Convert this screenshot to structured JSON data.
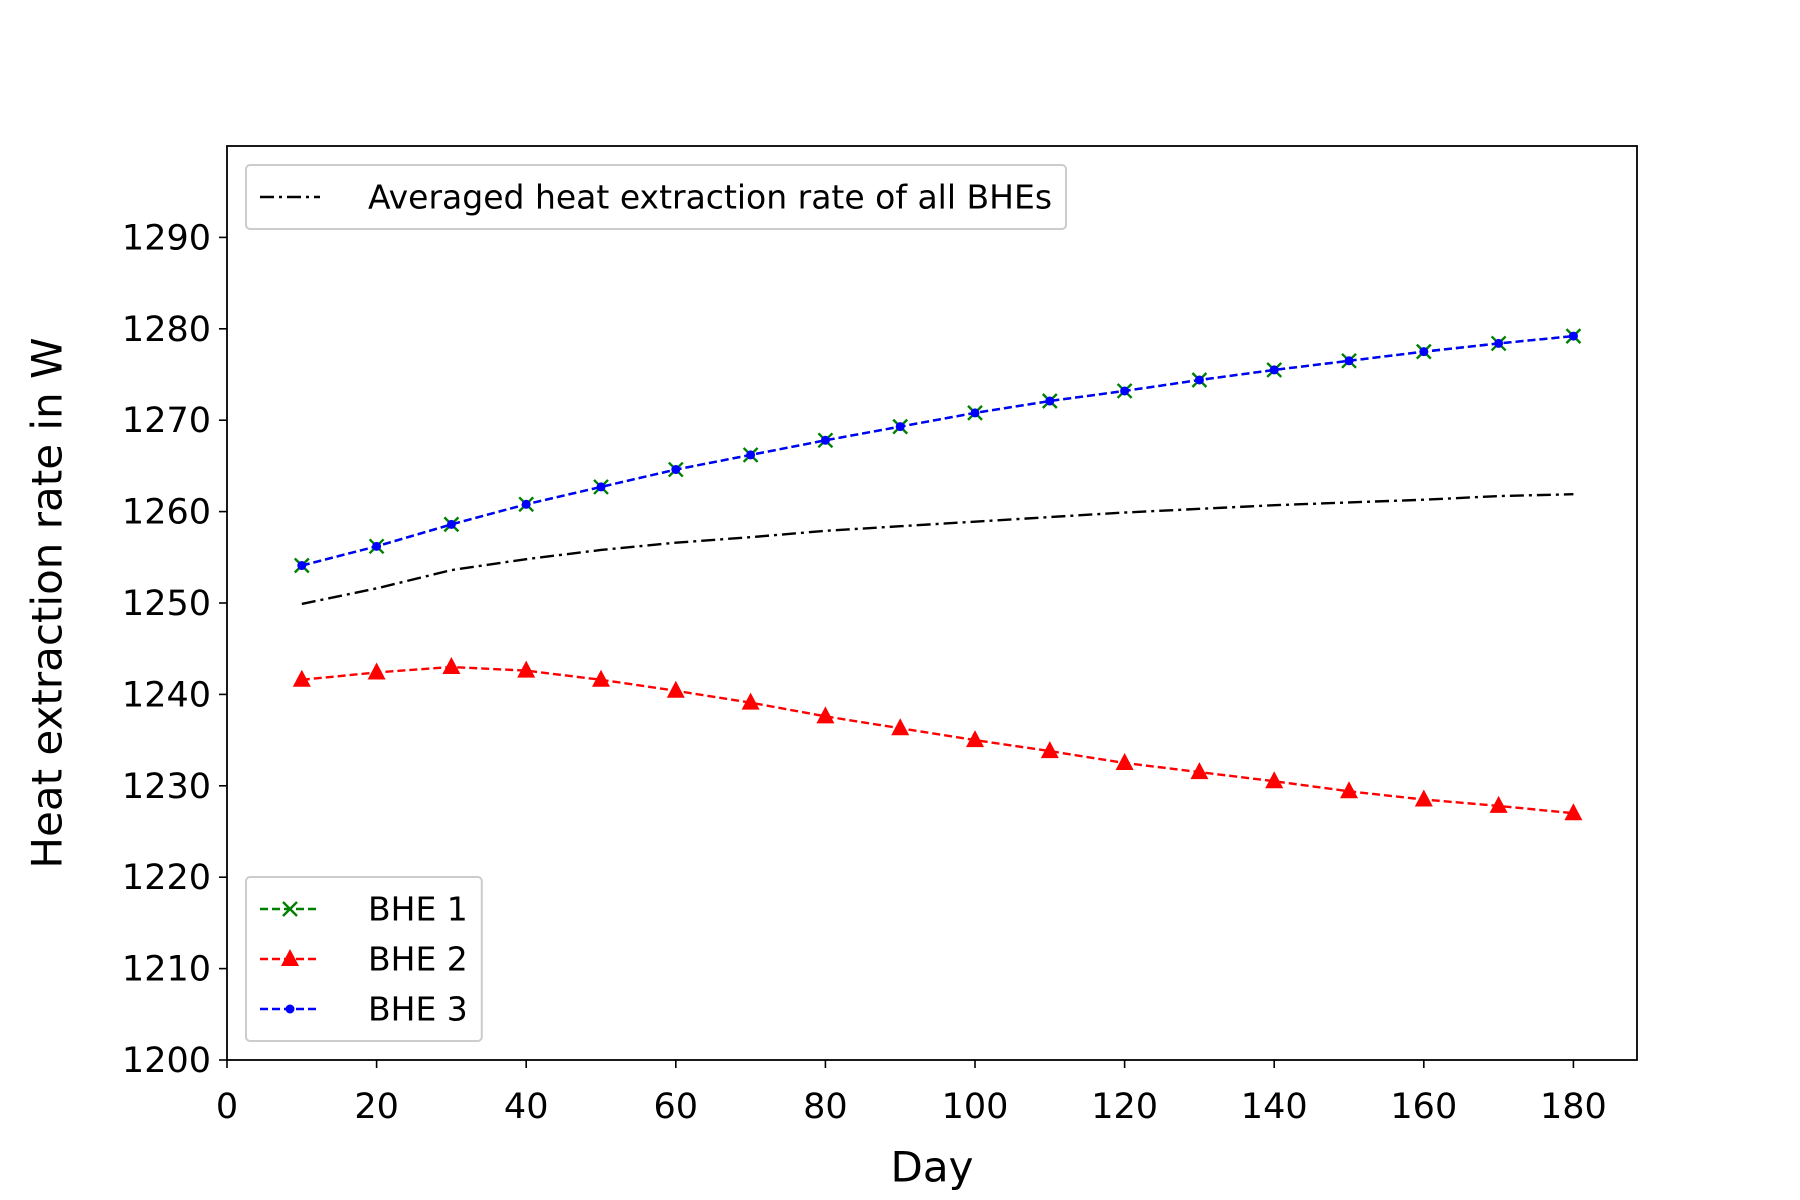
{
  "chart_data": {
    "type": "line",
    "x_label": "Day",
    "y_label": "Heat extraction rate in W",
    "x": [
      10,
      20,
      30,
      40,
      50,
      60,
      70,
      80,
      90,
      100,
      110,
      120,
      130,
      140,
      150,
      160,
      170,
      180
    ],
    "series": [
      {
        "name": "Averaged heat extraction rate of all BHEs",
        "color": "#000000",
        "linestyle": "dashdot",
        "marker": "none",
        "legend_loc": "upper left",
        "values": [
          1249.9,
          1251.6,
          1253.6,
          1254.8,
          1255.8,
          1256.6,
          1257.2,
          1257.9,
          1258.4,
          1258.9,
          1259.4,
          1259.9,
          1260.3,
          1260.7,
          1261.0,
          1261.3,
          1261.7,
          1261.9
        ]
      },
      {
        "name": "BHE 1",
        "color": "#008000",
        "linestyle": "dashed",
        "marker": "x",
        "legend_loc": "lower left",
        "values": [
          1254.1,
          1256.2,
          1258.6,
          1260.8,
          1262.7,
          1264.6,
          1266.2,
          1267.8,
          1269.3,
          1270.8,
          1272.1,
          1273.2,
          1274.4,
          1275.5,
          1276.5,
          1277.5,
          1278.4,
          1279.2
        ]
      },
      {
        "name": "BHE 2",
        "color": "#ff0000",
        "linestyle": "dashed",
        "marker": "triangle",
        "legend_loc": "lower left",
        "values": [
          1241.6,
          1242.4,
          1243.0,
          1242.6,
          1241.6,
          1240.4,
          1239.1,
          1237.6,
          1236.3,
          1235.0,
          1233.8,
          1232.5,
          1231.5,
          1230.5,
          1229.4,
          1228.5,
          1227.8,
          1227.0
        ]
      },
      {
        "name": "BHE 3",
        "color": "#0000ff",
        "linestyle": "dashed",
        "marker": "dot",
        "legend_loc": "lower left",
        "values": [
          1254.1,
          1256.2,
          1258.6,
          1260.8,
          1262.7,
          1264.6,
          1266.2,
          1267.8,
          1269.3,
          1270.8,
          1272.1,
          1273.2,
          1274.4,
          1275.5,
          1276.5,
          1277.5,
          1278.4,
          1279.2
        ]
      }
    ],
    "xlim": [
      0,
      188.5
    ],
    "ylim": [
      1200,
      1300
    ],
    "xticks": [
      0,
      20,
      40,
      60,
      80,
      100,
      120,
      140,
      160,
      180
    ],
    "yticks": [
      1200,
      1210,
      1220,
      1230,
      1240,
      1250,
      1260,
      1270,
      1280,
      1290
    ],
    "grid": false
  }
}
